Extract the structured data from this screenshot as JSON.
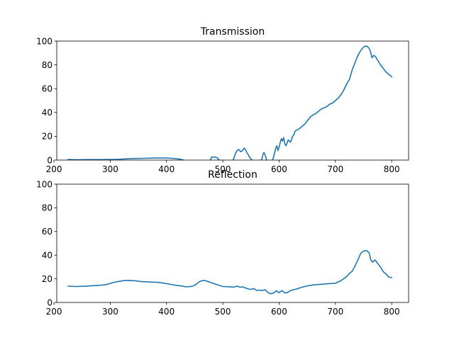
{
  "chart_data": [
    {
      "type": "line",
      "title": "Transmission",
      "xlim": [
        205,
        830
      ],
      "ylim": [
        0,
        100
      ],
      "xticks": [
        200,
        300,
        400,
        500,
        600,
        700,
        800
      ],
      "yticks": [
        0,
        20,
        40,
        60,
        80,
        100
      ],
      "series": [
        {
          "color": "#1f77b4",
          "x": [
            225,
            240,
            260,
            280,
            300,
            310,
            320,
            330,
            340,
            360,
            380,
            400,
            410,
            420,
            428,
            430,
            null,
            478,
            480,
            485,
            490,
            492,
            494,
            null,
            518,
            520,
            522,
            525,
            528,
            532,
            535,
            538,
            540,
            543,
            546,
            548,
            550,
            552,
            null,
            568,
            570,
            572,
            574,
            576,
            578,
            null,
            588,
            590,
            592,
            594,
            596,
            598,
            600,
            602,
            604,
            606,
            608,
            610,
            612,
            614,
            616,
            618,
            620,
            622,
            624,
            626,
            628,
            630,
            635,
            640,
            645,
            650,
            655,
            660,
            665,
            670,
            675,
            680,
            685,
            690,
            695,
            700,
            705,
            710,
            715,
            720,
            725,
            730,
            735,
            740,
            745,
            750,
            755,
            760,
            763,
            765,
            768,
            771,
            775,
            780,
            785,
            790,
            795,
            800
          ],
          "y": [
            0.5,
            0.3,
            0.4,
            0.4,
            0.5,
            0.6,
            0.8,
            1.1,
            1.3,
            1.5,
            1.7,
            1.7,
            1.5,
            1.0,
            0.3,
            0,
            null,
            0,
            2.5,
            2.6,
            2.0,
            0.5,
            0,
            null,
            0,
            2,
            5,
            8,
            9,
            7,
            8,
            10,
            9,
            6,
            4,
            2,
            1,
            0,
            null,
            0,
            2,
            6,
            6,
            3,
            0,
            null,
            0,
            2,
            6,
            10,
            12,
            8,
            11,
            15,
            18,
            16,
            19,
            14,
            12,
            14,
            17,
            16,
            15,
            17,
            20,
            21,
            24,
            25,
            26,
            28,
            30,
            33,
            36,
            38,
            39,
            41,
            43,
            44,
            45,
            47,
            48,
            50,
            52,
            55,
            59,
            64,
            68,
            76,
            82,
            88,
            92,
            95,
            96,
            94,
            90,
            86,
            88,
            87,
            84,
            80,
            77,
            74,
            72,
            70
          ]
        }
      ]
    },
    {
      "type": "line",
      "title": "Reflection",
      "xlim": [
        205,
        830
      ],
      "ylim": [
        0,
        100
      ],
      "xticks": [
        200,
        300,
        400,
        500,
        600,
        700,
        800
      ],
      "yticks": [
        0,
        20,
        40,
        60,
        80,
        100
      ],
      "series": [
        {
          "color": "#1f77b4",
          "x": [
            225,
            240,
            255,
            270,
            285,
            295,
            305,
            315,
            325,
            335,
            345,
            355,
            365,
            375,
            385,
            395,
            405,
            415,
            425,
            435,
            445,
            452,
            458,
            465,
            472,
            480,
            490,
            500,
            510,
            520,
            525,
            530,
            535,
            540,
            545,
            550,
            555,
            560,
            565,
            570,
            575,
            580,
            585,
            590,
            595,
            600,
            605,
            610,
            615,
            620,
            625,
            630,
            640,
            650,
            660,
            670,
            680,
            690,
            700,
            710,
            720,
            725,
            730,
            735,
            740,
            745,
            750,
            755,
            760,
            763,
            766,
            770,
            775,
            780,
            785,
            790,
            795,
            800
          ],
          "y": [
            13.8,
            13.5,
            13.7,
            14.2,
            14.6,
            15.3,
            16.8,
            17.8,
            18.5,
            18.6,
            18.3,
            17.6,
            17.4,
            17.2,
            17.0,
            16.3,
            15.5,
            14.6,
            14.0,
            13.2,
            13.6,
            15.0,
            17.5,
            18.7,
            18.0,
            16.6,
            15.0,
            13.5,
            13.3,
            13.0,
            13.8,
            13.0,
            13.2,
            12.3,
            11.5,
            11.0,
            11.8,
            10.2,
            10.5,
            10.0,
            10.8,
            8.5,
            7.3,
            8.0,
            9.8,
            8.2,
            10.0,
            8.0,
            8.5,
            10.0,
            10.8,
            11.2,
            12.8,
            14.0,
            14.8,
            15.2,
            15.5,
            16.0,
            16.2,
            18.5,
            22.0,
            24.5,
            26.5,
            31.0,
            36.0,
            41.5,
            43.5,
            44.0,
            42.0,
            36.0,
            34.0,
            36.0,
            33.0,
            30.0,
            26.0,
            24.0,
            21.5,
            21.0
          ]
        }
      ]
    }
  ]
}
